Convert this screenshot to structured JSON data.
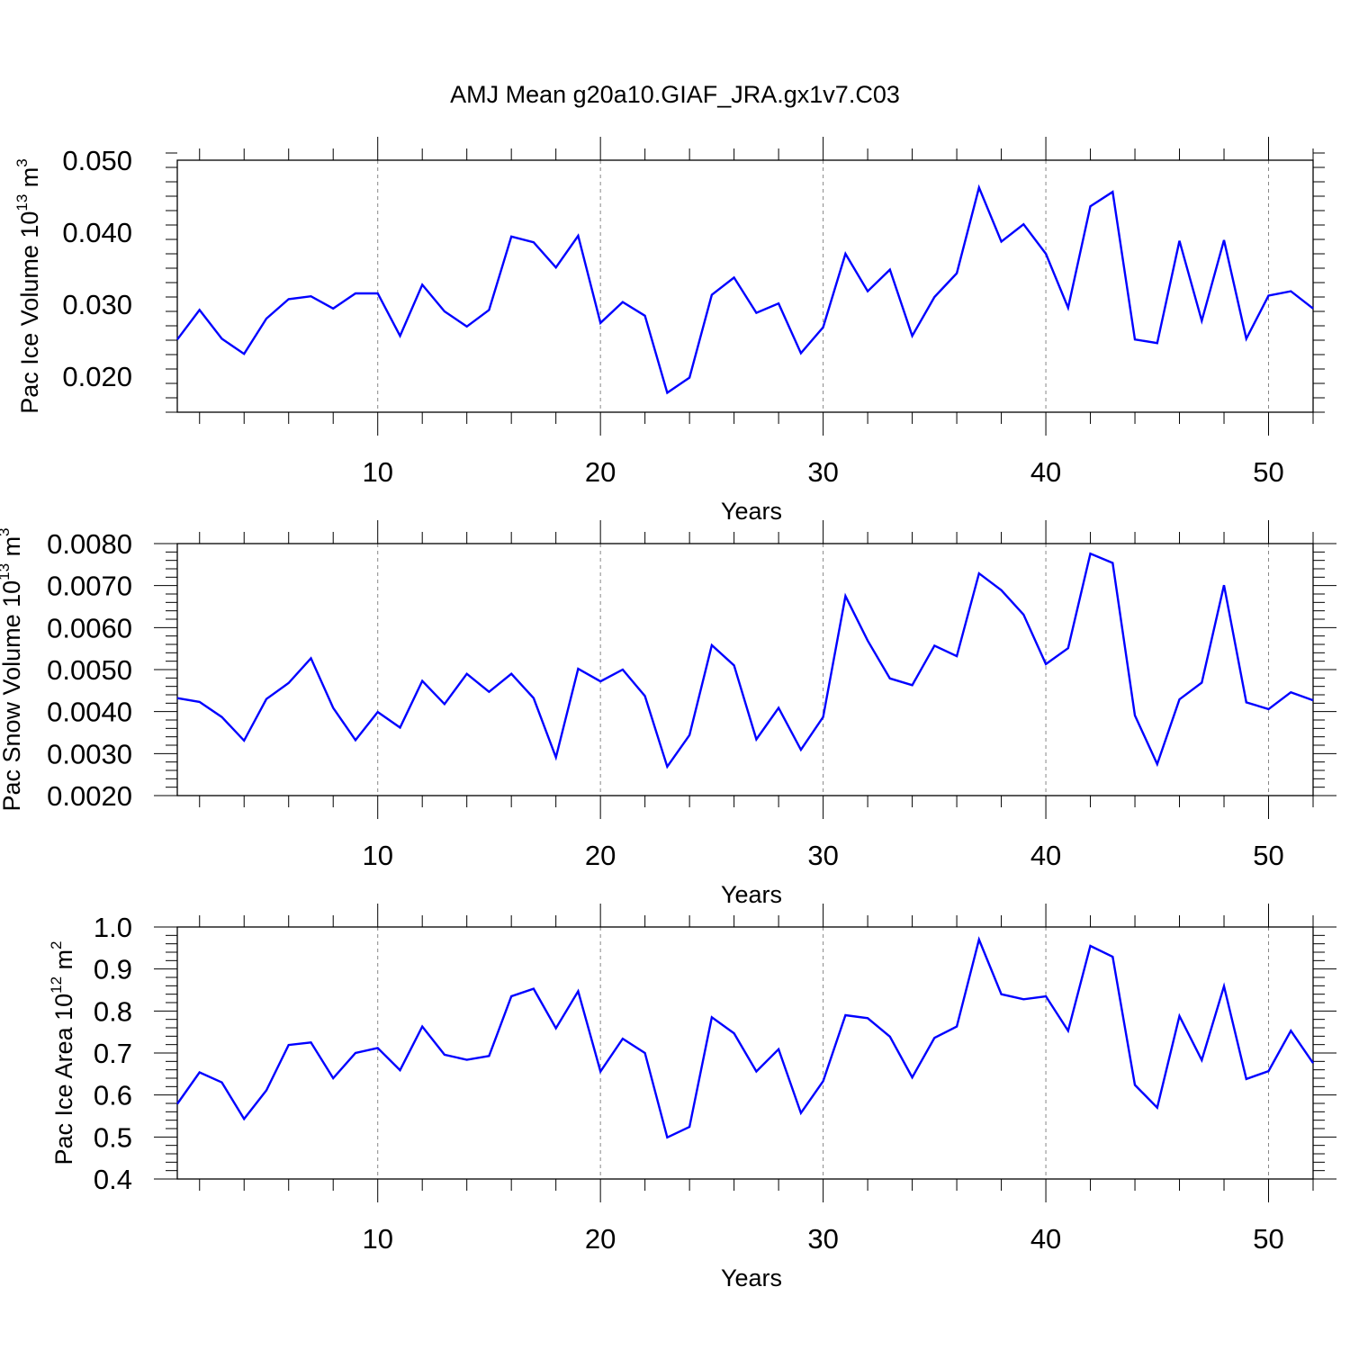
{
  "title": "AMJ Mean g20a10.GIAF_JRA.gx1v7.C03",
  "chart_data": [
    {
      "type": "line",
      "series_color": "#0000ff",
      "ylabel": {
        "main": "Pac Ice Volume 10",
        "exp": "13",
        "unit": " m",
        "unit_exp": "3"
      },
      "xlabel": "Years",
      "xlim": [
        1,
        52
      ],
      "ylim": [
        0.015,
        0.05
      ],
      "yticks": [
        0.02,
        0.03,
        0.04,
        0.05
      ],
      "ytick_labels": [
        "0.020",
        "0.030",
        "0.040",
        "0.050"
      ],
      "yminor_step": 0.002,
      "xticks": [
        10,
        20,
        30,
        40,
        50
      ],
      "xtick_labels": [
        "10",
        "20",
        "30",
        "40",
        "50"
      ],
      "x": [
        1,
        2,
        3,
        4,
        5,
        6,
        7,
        8,
        9,
        10,
        11,
        12,
        13,
        14,
        15,
        16,
        17,
        18,
        19,
        20,
        21,
        22,
        23,
        24,
        25,
        26,
        27,
        28,
        29,
        30,
        31,
        32,
        33,
        34,
        35,
        36,
        37,
        38,
        39,
        40,
        41,
        42,
        43,
        44,
        45,
        46,
        47,
        48,
        49,
        50,
        51,
        52
      ],
      "values": [
        0.0251,
        0.0292,
        0.0252,
        0.0231,
        0.028,
        0.0307,
        0.0311,
        0.0294,
        0.0315,
        0.0315,
        0.0256,
        0.0327,
        0.029,
        0.0269,
        0.0292,
        0.0394,
        0.0386,
        0.0351,
        0.0395,
        0.0274,
        0.0303,
        0.0284,
        0.0177,
        0.0198,
        0.0313,
        0.0337,
        0.0288,
        0.0301,
        0.0232,
        0.0268,
        0.037,
        0.0318,
        0.0348,
        0.0256,
        0.031,
        0.0343,
        0.0462,
        0.0387,
        0.0411,
        0.037,
        0.0295,
        0.0436,
        0.0456,
        0.0251,
        0.0246,
        0.0388,
        0.0277,
        0.0389,
        0.0252,
        0.0312,
        0.0318,
        0.0294
      ]
    },
    {
      "type": "line",
      "series_color": "#0000ff",
      "ylabel": {
        "main": "Pac Snow Volume 10",
        "exp": "13",
        "unit": " m",
        "unit_exp": "3"
      },
      "xlabel": "Years",
      "xlim": [
        1,
        52
      ],
      "ylim": [
        0.002,
        0.008
      ],
      "yticks": [
        0.002,
        0.003,
        0.004,
        0.005,
        0.006,
        0.007,
        0.008
      ],
      "ytick_labels": [
        "0.0020",
        "0.0030",
        "0.0040",
        "0.0050",
        "0.0060",
        "0.0070",
        "0.0080"
      ],
      "yminor_step": 0.0002,
      "xticks": [
        10,
        20,
        30,
        40,
        50
      ],
      "xtick_labels": [
        "10",
        "20",
        "30",
        "40",
        "50"
      ],
      "x": [
        1,
        2,
        3,
        4,
        5,
        6,
        7,
        8,
        9,
        10,
        11,
        12,
        13,
        14,
        15,
        16,
        17,
        18,
        19,
        20,
        21,
        22,
        23,
        24,
        25,
        26,
        27,
        28,
        29,
        30,
        31,
        32,
        33,
        34,
        35,
        36,
        37,
        38,
        39,
        40,
        41,
        42,
        43,
        44,
        45,
        46,
        47,
        48,
        49,
        50,
        51,
        52
      ],
      "values": [
        0.00432,
        0.00423,
        0.00387,
        0.00331,
        0.0043,
        0.00468,
        0.00527,
        0.00409,
        0.00332,
        0.00399,
        0.00362,
        0.00473,
        0.00418,
        0.0049,
        0.00447,
        0.0049,
        0.00432,
        0.00291,
        0.00502,
        0.00472,
        0.005,
        0.00437,
        0.00269,
        0.00344,
        0.00558,
        0.0051,
        0.00334,
        0.00409,
        0.00309,
        0.00387,
        0.00675,
        0.00569,
        0.00479,
        0.00463,
        0.00557,
        0.00532,
        0.00729,
        0.00689,
        0.00631,
        0.00513,
        0.00551,
        0.00776,
        0.00754,
        0.00391,
        0.00275,
        0.00429,
        0.00469,
        0.00701,
        0.00422,
        0.00406,
        0.00446,
        0.00427
      ]
    },
    {
      "type": "line",
      "series_color": "#0000ff",
      "ylabel": {
        "main": "Pac Ice Area 10",
        "exp": "12",
        "unit": " m",
        "unit_exp": "2"
      },
      "xlabel": "Years",
      "xlim": [
        1,
        52
      ],
      "ylim": [
        0.4,
        1.0
      ],
      "yticks": [
        0.4,
        0.5,
        0.6,
        0.7,
        0.8,
        0.9,
        1.0
      ],
      "ytick_labels": [
        "0.4",
        "0.5",
        "0.6",
        "0.7",
        "0.8",
        "0.9",
        "1.0"
      ],
      "yminor_step": 0.02,
      "xticks": [
        10,
        20,
        30,
        40,
        50
      ],
      "xtick_labels": [
        "10",
        "20",
        "30",
        "40",
        "50"
      ],
      "x": [
        1,
        2,
        3,
        4,
        5,
        6,
        7,
        8,
        9,
        10,
        11,
        12,
        13,
        14,
        15,
        16,
        17,
        18,
        19,
        20,
        21,
        22,
        23,
        24,
        25,
        26,
        27,
        28,
        29,
        30,
        31,
        32,
        33,
        34,
        35,
        36,
        37,
        38,
        39,
        40,
        41,
        42,
        43,
        44,
        45,
        46,
        47,
        48,
        49,
        50,
        51,
        52
      ],
      "values": [
        0.579,
        0.654,
        0.63,
        0.543,
        0.611,
        0.719,
        0.725,
        0.64,
        0.7,
        0.712,
        0.659,
        0.763,
        0.696,
        0.684,
        0.693,
        0.835,
        0.853,
        0.759,
        0.847,
        0.656,
        0.734,
        0.7,
        0.499,
        0.524,
        0.785,
        0.747,
        0.656,
        0.709,
        0.557,
        0.633,
        0.79,
        0.783,
        0.739,
        0.642,
        0.736,
        0.763,
        0.97,
        0.84,
        0.828,
        0.835,
        0.753,
        0.955,
        0.929,
        0.624,
        0.57,
        0.788,
        0.683,
        0.859,
        0.638,
        0.657,
        0.753,
        0.676
      ]
    }
  ]
}
